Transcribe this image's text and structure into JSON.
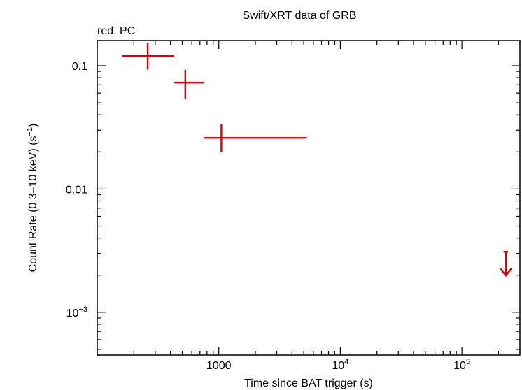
{
  "chart_data": {
    "type": "scatter",
    "title": "Swift/XRT data of GRB",
    "subtitle": "red: PC",
    "xlabel": "Time since BAT trigger (s)",
    "ylabel_main": "Count Rate (0.3–10 keV) (s",
    "ylabel_sup": "−1",
    "ylabel_close": ")",
    "x_scale": "log",
    "y_scale": "log",
    "xlim": [
      100,
      300000
    ],
    "ylim": [
      0.00045,
      0.16
    ],
    "x_ticks": [
      {
        "value": 1000,
        "base": "1000",
        "exp": ""
      },
      {
        "value": 10000,
        "base": "10",
        "exp": "4"
      },
      {
        "value": 100000,
        "base": "10",
        "exp": "5"
      }
    ],
    "y_ticks": [
      {
        "value": 0.1,
        "base": "0.1",
        "exp": ""
      },
      {
        "value": 0.01,
        "base": "0.01",
        "exp": ""
      },
      {
        "value": 0.001,
        "base": "10",
        "exp": "−3"
      }
    ],
    "grid": false,
    "series": [
      {
        "color": "#e00000",
        "points": [
          {
            "x": 260,
            "xlo": 160,
            "xhi": 430,
            "y": 0.12,
            "ylo": 0.093,
            "yhi": 0.152
          },
          {
            "x": 530,
            "xlo": 430,
            "xhi": 760,
            "y": 0.073,
            "ylo": 0.054,
            "yhi": 0.093
          },
          {
            "x": 1050,
            "xlo": 760,
            "xhi": 5300,
            "y": 0.026,
            "ylo": 0.0198,
            "yhi": 0.0335
          }
        ],
        "upper_limits": [
          {
            "x": 230000,
            "xlo": 220000,
            "xhi": 240000,
            "y": 0.0031
          }
        ]
      }
    ]
  }
}
